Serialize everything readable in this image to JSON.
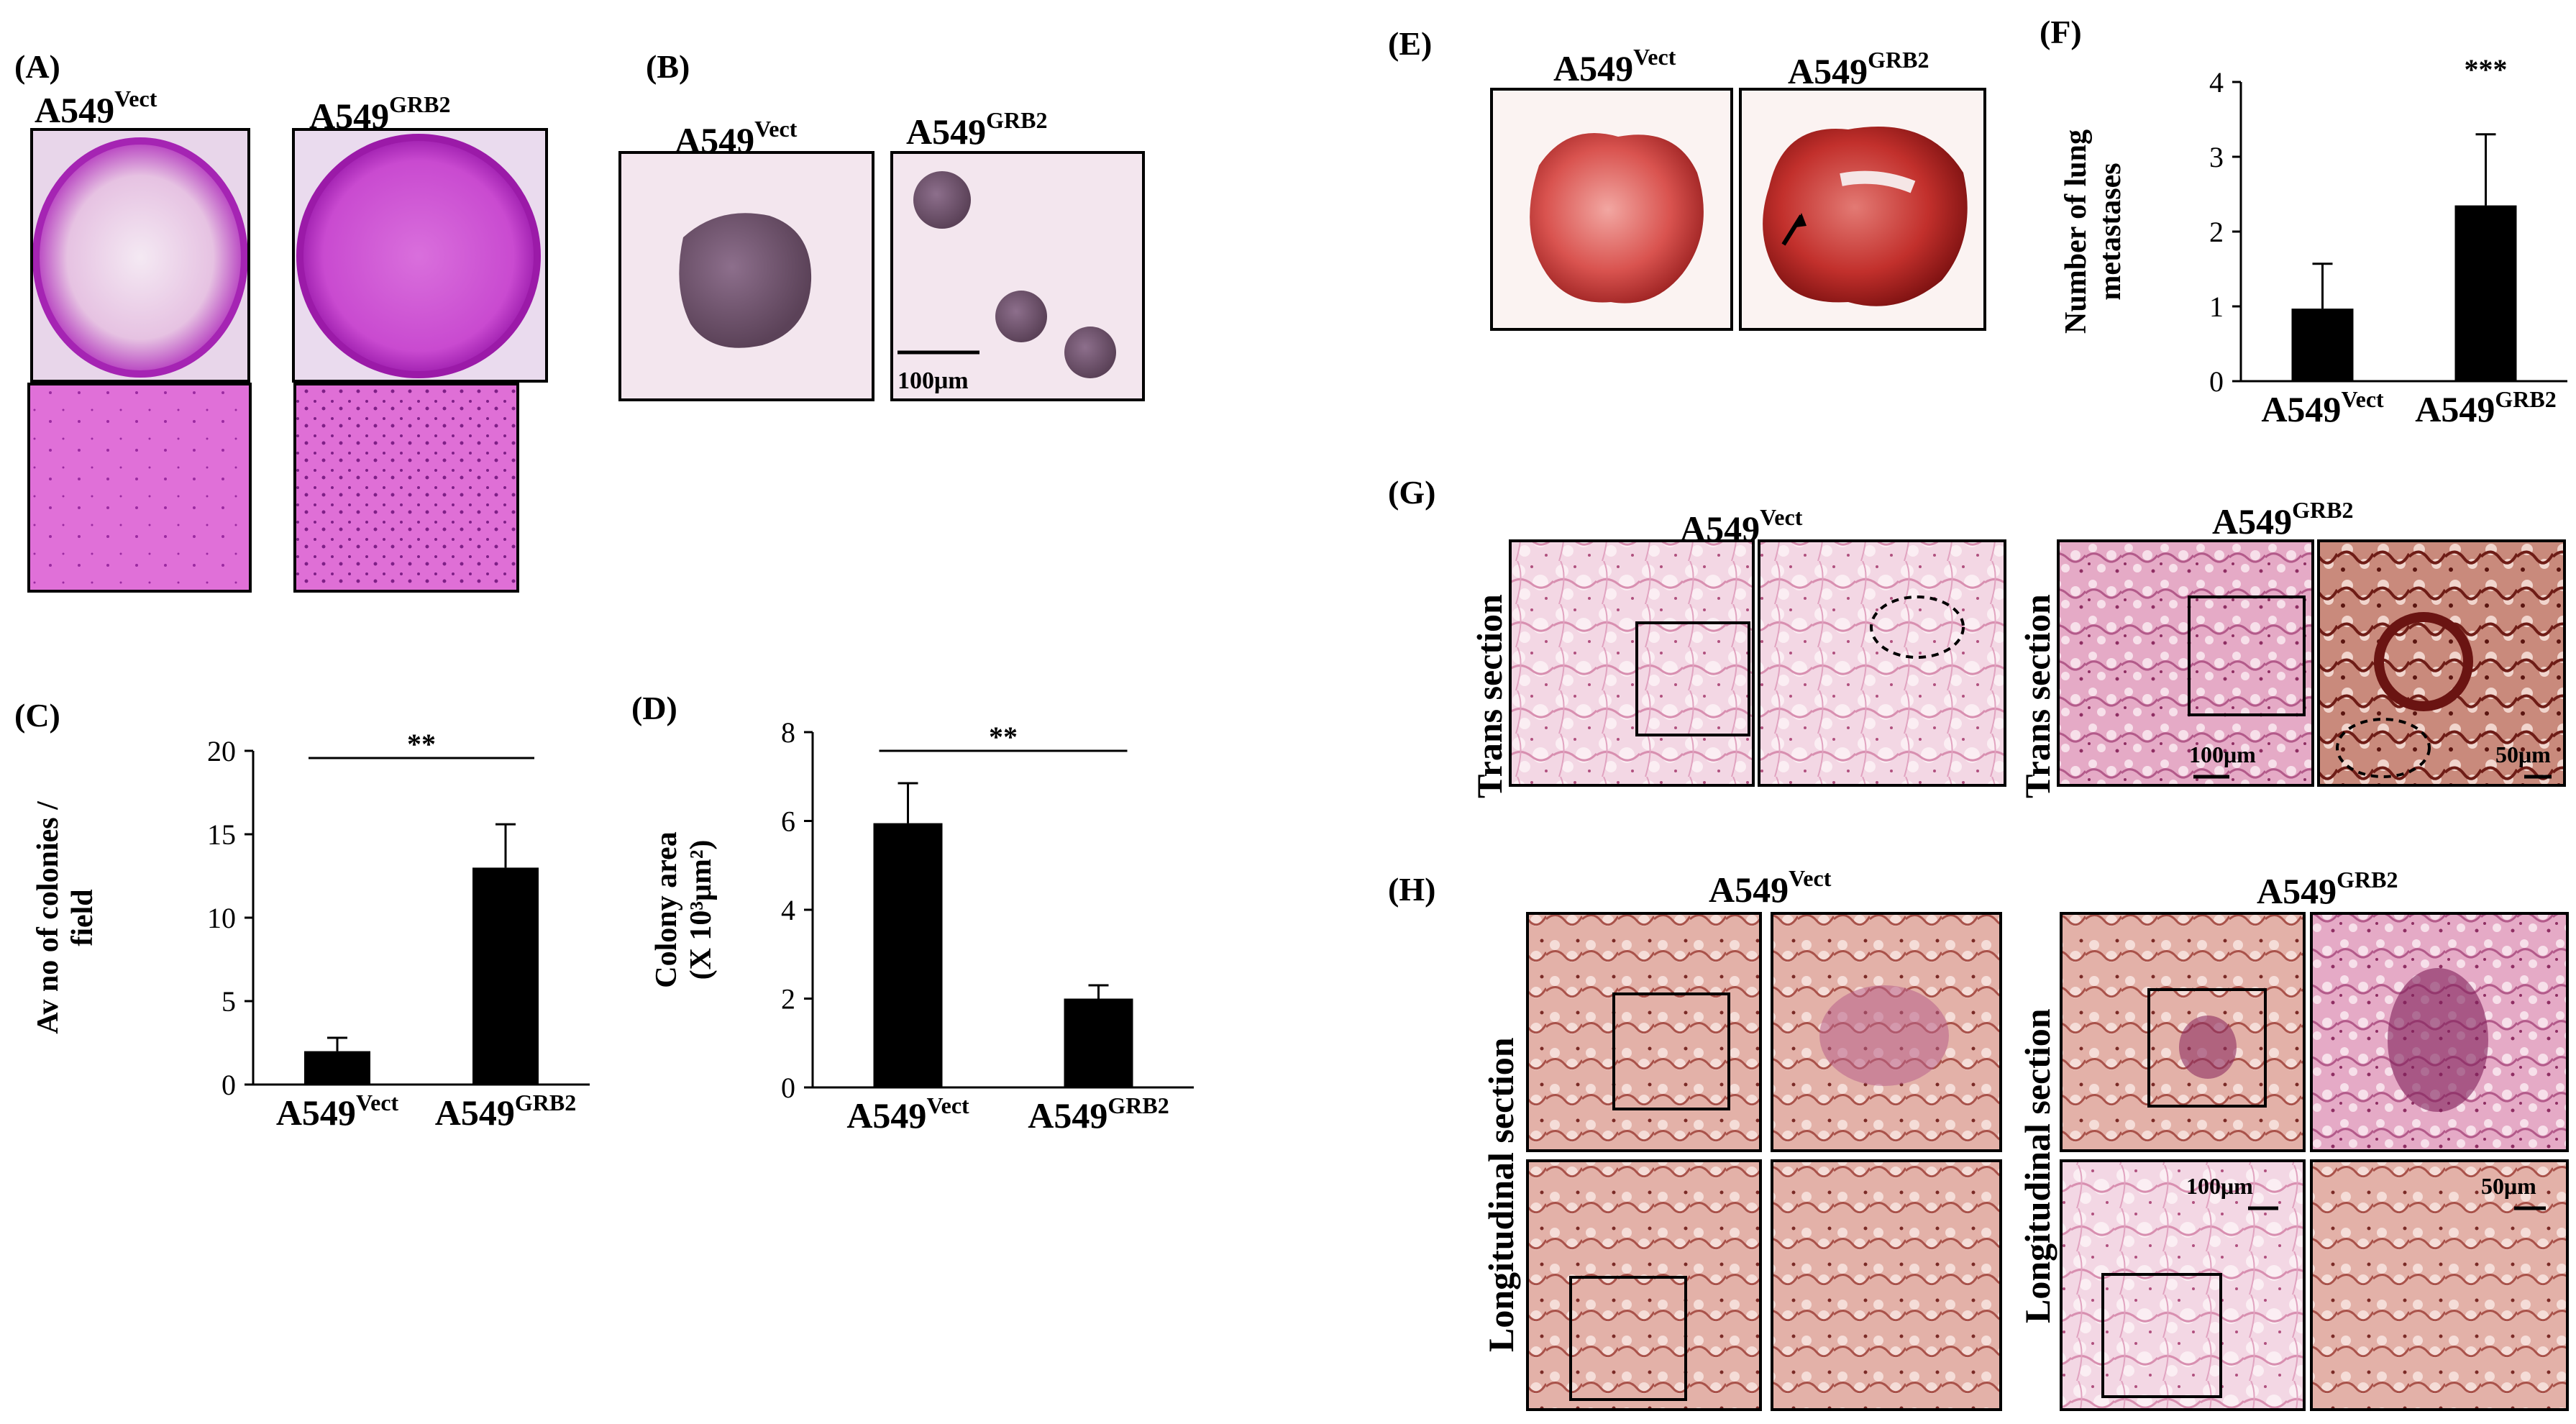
{
  "panels": {
    "A": {
      "label": "(A)",
      "conditions": [
        {
          "base": "A549",
          "sup": "Vect"
        },
        {
          "base": "A549",
          "sup": "GRB2"
        }
      ]
    },
    "B": {
      "label": "(B)",
      "conditions": [
        {
          "base": "A549",
          "sup": "Vect"
        },
        {
          "base": "A549",
          "sup": "GRB2"
        }
      ],
      "scale_bar": "100μm"
    },
    "E": {
      "label": "(E)",
      "conditions": [
        {
          "base": "A549",
          "sup": "Vect"
        },
        {
          "base": "A549",
          "sup": "GRB2"
        }
      ]
    },
    "G": {
      "label": "(G)",
      "row_label": "Trans section",
      "conditions": [
        {
          "base": "A549",
          "sup": "Vect"
        },
        {
          "base": "A549",
          "sup": "GRB2"
        }
      ],
      "scale_bars": [
        "100μm",
        "50μm"
      ]
    },
    "H": {
      "label": "(H)",
      "row_label": "Longitudinal section",
      "conditions": [
        {
          "base": "A549",
          "sup": "Vect"
        },
        {
          "base": "A549",
          "sup": "GRB2"
        }
      ],
      "scale_bars": [
        "100μm",
        "50μm"
      ]
    }
  },
  "chart_data": [
    {
      "panel": "(C)",
      "type": "bar",
      "categories": [
        {
          "base": "A549",
          "sup": "Vect"
        },
        {
          "base": "A549",
          "sup": "GRB2"
        }
      ],
      "values": [
        2,
        13
      ],
      "errors": [
        0.8,
        2.6
      ],
      "ylabel_lines": [
        "Av no of colonies /",
        "field"
      ],
      "ylim": [
        0,
        20
      ],
      "yticks": [
        "0",
        "5",
        "10",
        "15",
        "20"
      ],
      "significance": "**",
      "bar_color": "#000000"
    },
    {
      "panel": "(D)",
      "type": "bar",
      "categories": [
        {
          "base": "A549",
          "sup": "Vect"
        },
        {
          "base": "A549",
          "sup": "GRB2"
        }
      ],
      "values": [
        5.95,
        2.0
      ],
      "errors": [
        0.9,
        0.3
      ],
      "ylabel_lines": [
        "Colony area",
        "(X 10³μm²)"
      ],
      "ylim": [
        0,
        8
      ],
      "yticks": [
        "0",
        "2",
        "4",
        "6",
        "8"
      ],
      "significance": "**",
      "bar_color": "#000000"
    },
    {
      "panel": "(F)",
      "type": "bar",
      "categories": [
        {
          "base": "A549",
          "sup": "Vect"
        },
        {
          "base": "A549",
          "sup": "GRB2"
        }
      ],
      "values": [
        0.97,
        2.35
      ],
      "errors": [
        0.6,
        0.95
      ],
      "ylabel_lines": [
        "Number of lung",
        "metastases"
      ],
      "ylim": [
        0,
        4
      ],
      "yticks": [
        "0",
        "1",
        "2",
        "3",
        "4"
      ],
      "significance": "***",
      "bar_color": "#000000"
    }
  ]
}
